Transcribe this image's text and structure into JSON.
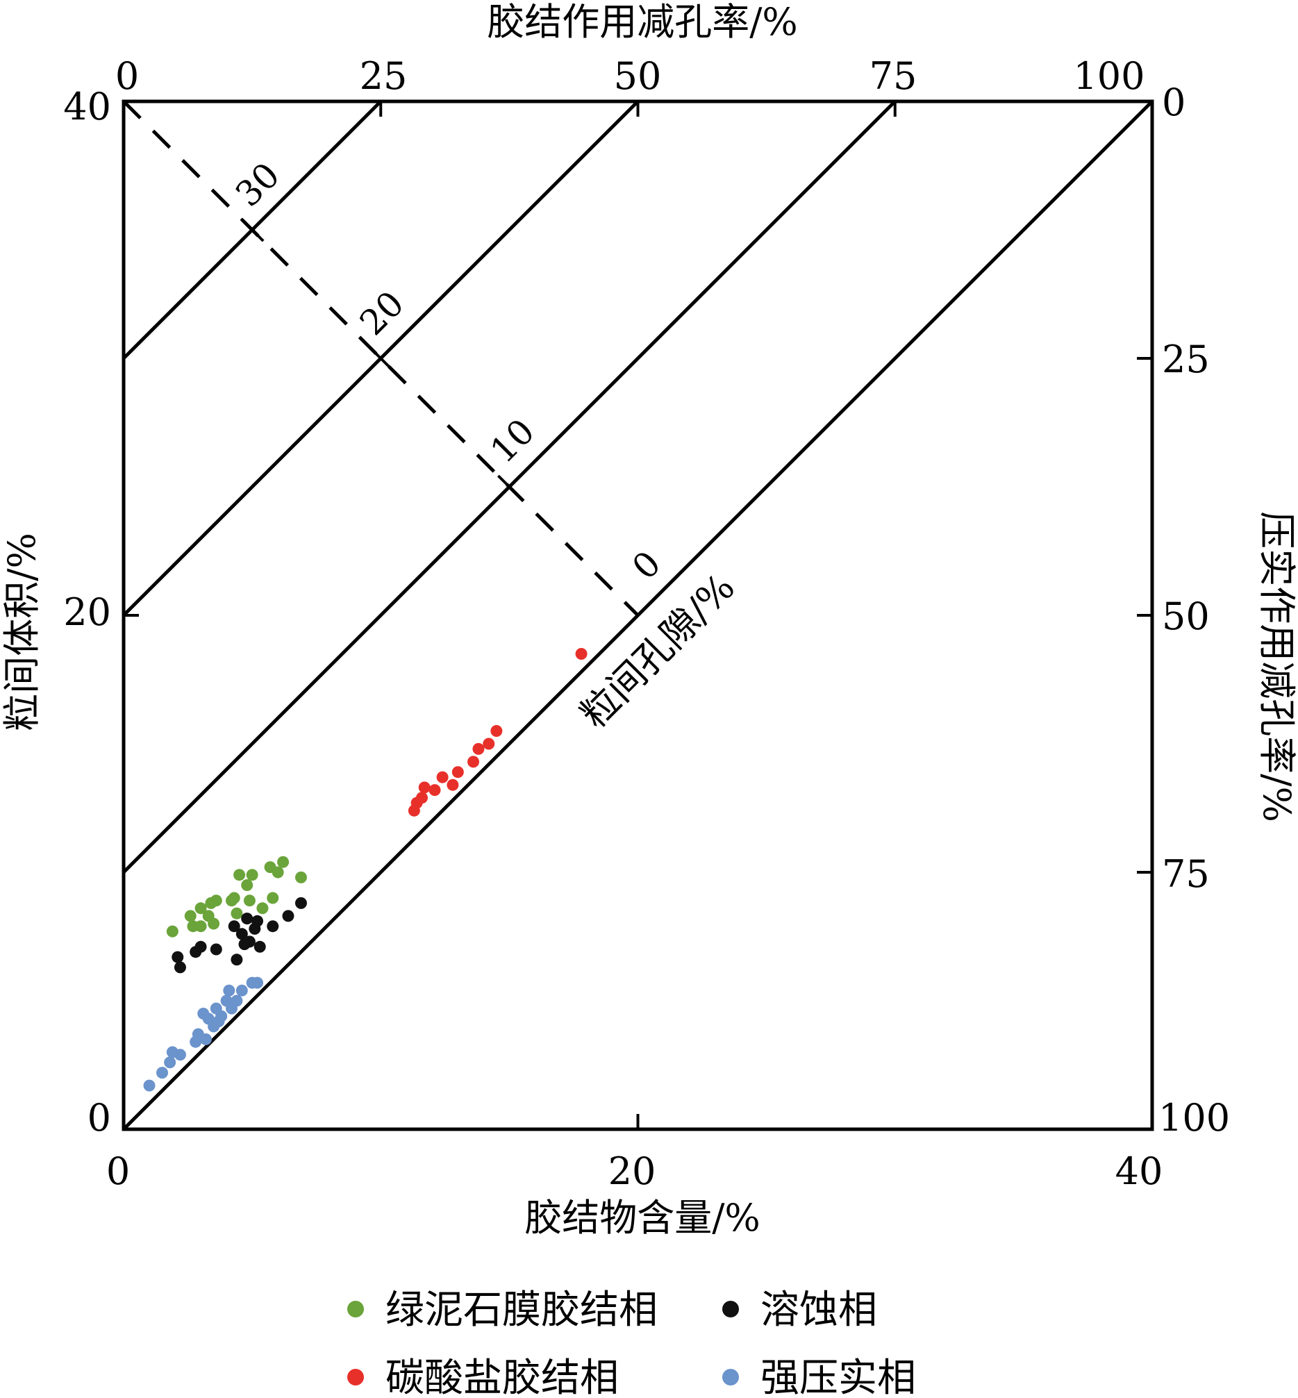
{
  "chart_data": {
    "type": "scatter",
    "xlabel": "胶结物含量/%",
    "ylabel": "粒间体积/%",
    "top_axis_label": "胶结作用减孔率/%",
    "right_axis_label": "压实作用减孔率/%",
    "diagonal_axis_label": "粒间孔隙/%",
    "xlim": [
      0,
      40
    ],
    "ylim": [
      0,
      40
    ],
    "x_ticks": [
      "0",
      "20",
      "40"
    ],
    "y_ticks": [
      "0",
      "20",
      "40"
    ],
    "top_ticks": [
      "0",
      "25",
      "50",
      "75",
      "100"
    ],
    "right_ticks": [
      "0",
      "25",
      "50",
      "75",
      "100"
    ],
    "porosity_ticks": [
      "0",
      "10",
      "20",
      "30"
    ],
    "grid": false,
    "legend_position": "bottom",
    "series": [
      {
        "name": "绿泥石膜胶结相",
        "color": "#6aa43a",
        "points": [
          [
            1.9,
            7.7
          ],
          [
            2.6,
            8.3
          ],
          [
            2.7,
            7.9
          ],
          [
            3.0,
            8.6
          ],
          [
            3.0,
            7.9
          ],
          [
            3.3,
            8.3
          ],
          [
            3.4,
            8.8
          ],
          [
            3.5,
            8.0
          ],
          [
            3.6,
            8.9
          ],
          [
            4.2,
            8.9
          ],
          [
            4.3,
            9.0
          ],
          [
            4.4,
            8.4
          ],
          [
            4.5,
            9.9
          ],
          [
            4.8,
            9.5
          ],
          [
            4.9,
            8.9
          ],
          [
            5.0,
            9.9
          ],
          [
            5.4,
            8.6
          ],
          [
            5.7,
            10.2
          ],
          [
            5.8,
            9.0
          ],
          [
            6.0,
            10.0
          ],
          [
            6.2,
            10.4
          ],
          [
            6.9,
            9.8
          ]
        ],
        "data_x": [
          1.9,
          2.6,
          2.7,
          3.0,
          3.0,
          3.3,
          3.4,
          3.5,
          3.6,
          4.2,
          4.3,
          4.4,
          4.5,
          4.8,
          4.9,
          5.0,
          5.4,
          5.7,
          5.8,
          6.0,
          6.2,
          6.9
        ],
        "data_y": [
          7.7,
          8.3,
          7.9,
          8.6,
          7.9,
          8.3,
          8.8,
          8.0,
          8.9,
          8.9,
          9.0,
          8.4,
          9.9,
          9.5,
          8.9,
          9.9,
          8.6,
          10.2,
          9.0,
          10.0,
          10.4,
          9.8
        ]
      },
      {
        "name": "溶蚀相",
        "color": "#111111",
        "points": [
          [
            2.1,
            6.7
          ],
          [
            2.2,
            6.3
          ],
          [
            2.8,
            6.9
          ],
          [
            3.0,
            7.1
          ],
          [
            3.6,
            7.0
          ],
          [
            4.3,
            7.9
          ],
          [
            4.4,
            6.6
          ],
          [
            4.6,
            7.6
          ],
          [
            4.7,
            7.2
          ],
          [
            4.8,
            8.2
          ],
          [
            4.9,
            7.3
          ],
          [
            5.1,
            7.8
          ],
          [
            5.2,
            8.1
          ],
          [
            5.3,
            7.1
          ],
          [
            5.8,
            7.9
          ],
          [
            6.4,
            8.3
          ],
          [
            6.9,
            8.8
          ]
        ],
        "data_x": [
          2.1,
          2.2,
          2.8,
          3.0,
          3.6,
          4.3,
          4.4,
          4.6,
          4.7,
          4.8,
          4.9,
          5.1,
          5.2,
          5.3,
          5.8,
          6.4,
          6.9
        ],
        "data_y": [
          6.7,
          6.3,
          6.9,
          7.1,
          7.0,
          7.9,
          6.6,
          7.6,
          7.2,
          8.2,
          7.3,
          7.8,
          8.1,
          7.1,
          7.9,
          8.3,
          8.8
        ]
      },
      {
        "name": "碳酸盐胶结相",
        "color": "#e8302a",
        "points": [
          [
            11.3,
            12.4
          ],
          [
            11.4,
            12.7
          ],
          [
            11.6,
            12.9
          ],
          [
            11.7,
            13.3
          ],
          [
            12.1,
            13.2
          ],
          [
            12.4,
            13.7
          ],
          [
            12.8,
            13.4
          ],
          [
            13.0,
            13.9
          ],
          [
            13.6,
            14.3
          ],
          [
            13.8,
            14.8
          ],
          [
            14.2,
            15.0
          ],
          [
            14.5,
            15.5
          ],
          [
            17.8,
            18.5
          ]
        ],
        "data_x": [
          11.3,
          11.4,
          11.6,
          11.7,
          12.1,
          12.4,
          12.8,
          13.0,
          13.6,
          13.8,
          14.2,
          14.5,
          17.8
        ],
        "data_y": [
          12.4,
          12.7,
          12.9,
          13.3,
          13.2,
          13.7,
          13.4,
          13.9,
          14.3,
          14.8,
          15.0,
          15.5,
          18.5
        ]
      },
      {
        "name": "强压实相",
        "color": "#6b93cc",
        "points": [
          [
            1.0,
            1.7
          ],
          [
            1.5,
            2.2
          ],
          [
            1.8,
            2.6
          ],
          [
            1.9,
            3.0
          ],
          [
            2.2,
            2.9
          ],
          [
            2.8,
            3.4
          ],
          [
            2.9,
            3.7
          ],
          [
            3.1,
            4.5
          ],
          [
            3.2,
            3.5
          ],
          [
            3.3,
            4.3
          ],
          [
            3.5,
            4.0
          ],
          [
            3.6,
            4.7
          ],
          [
            3.7,
            4.2
          ],
          [
            3.8,
            4.4
          ],
          [
            4.0,
            5.0
          ],
          [
            4.1,
            5.4
          ],
          [
            4.2,
            4.7
          ],
          [
            4.4,
            5.0
          ],
          [
            4.6,
            5.4
          ],
          [
            5.0,
            5.7
          ],
          [
            5.2,
            5.7
          ]
        ],
        "data_x": [
          1.0,
          1.5,
          1.8,
          1.9,
          2.2,
          2.8,
          2.9,
          3.1,
          3.2,
          3.3,
          3.5,
          3.6,
          3.7,
          3.8,
          4.0,
          4.1,
          4.2,
          4.4,
          4.6,
          5.0,
          5.2
        ],
        "data_y": [
          1.7,
          2.2,
          2.6,
          3.0,
          2.9,
          3.4,
          3.7,
          4.5,
          3.5,
          4.3,
          4.0,
          4.7,
          4.2,
          4.4,
          5.0,
          5.4,
          4.7,
          5.0,
          5.4,
          5.7,
          5.7
        ]
      }
    ]
  }
}
